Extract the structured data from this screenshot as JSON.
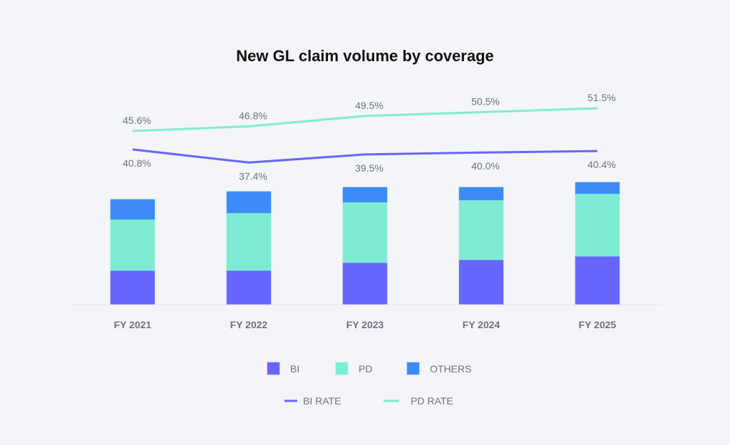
{
  "chart_data": {
    "type": "bar",
    "title": "New GL claim volume by coverage",
    "xlabel": "",
    "ylabel": "",
    "categories": [
      "FY 2021",
      "FY 2022",
      "FY 2023",
      "FY 2024",
      "FY 2025"
    ],
    "stacked": true,
    "units_note": "relative volume (no y-axis shown; values estimated from bar heights)",
    "ylim": [
      0,
      180
    ],
    "series": [
      {
        "name": "BI",
        "kind": "bar",
        "color": "#6666ff",
        "values": [
          48,
          48,
          59,
          63,
          68
        ]
      },
      {
        "name": "PD",
        "kind": "bar",
        "color": "#7eecd4",
        "values": [
          72,
          81,
          85,
          84,
          88
        ]
      },
      {
        "name": "OTHERS",
        "kind": "bar",
        "color": "#3d8bf7",
        "values": [
          28,
          30,
          21,
          18,
          16
        ]
      }
    ],
    "line_series": [
      {
        "name": "BI RATE",
        "kind": "line",
        "color": "#6666ff",
        "values": [
          40.8,
          37.4,
          39.5,
          40.0,
          40.4
        ],
        "labels": [
          "40.8%",
          "37.4%",
          "39.5%",
          "40.0%",
          "40.4%"
        ],
        "label_position": "below"
      },
      {
        "name": "PD RATE",
        "kind": "line",
        "color": "#7eecd4",
        "values": [
          45.6,
          46.8,
          49.5,
          50.5,
          51.5
        ],
        "labels": [
          "45.6%",
          "46.8%",
          "49.5%",
          "50.5%",
          "51.5%"
        ],
        "label_position": "above"
      }
    ],
    "line_axis_range": [
      25,
      60
    ],
    "grid": false,
    "legend": {
      "placement": "bottom-center",
      "bar_items": [
        "BI",
        "PD",
        "OTHERS"
      ],
      "line_items": [
        "BI RATE",
        "PD RATE"
      ]
    }
  }
}
